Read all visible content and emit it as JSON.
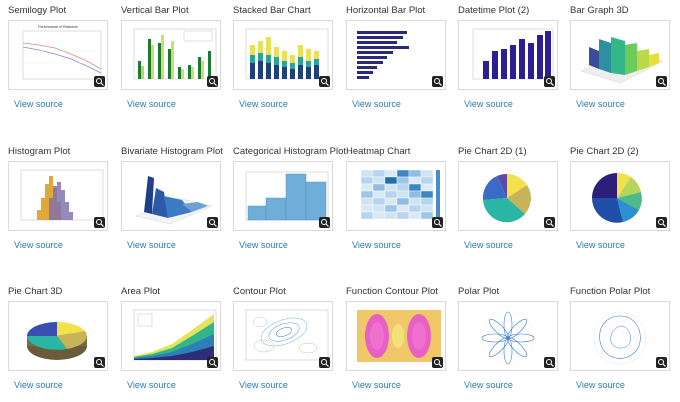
{
  "cards": [
    {
      "title": "Semilogy Plot",
      "link": "View source"
    },
    {
      "title": "Vertical Bar Plot",
      "link": "View source"
    },
    {
      "title": "Stacked Bar Chart",
      "link": "View source"
    },
    {
      "title": "Horizontal Bar Plot",
      "link": "View source"
    },
    {
      "title": "Datetime Plot (2)",
      "link": "View source"
    },
    {
      "title": "Bar Graph 3D",
      "link": "View source"
    },
    {
      "title": "Histogram Plot",
      "link": "View source"
    },
    {
      "title": "Bivariate Histogram Plot",
      "link": "View source"
    },
    {
      "title": "Categorical Histogram Plot",
      "link": "View source"
    },
    {
      "title": "Heatmap Chart",
      "link": "View source"
    },
    {
      "title": "Pie Chart 2D (1)",
      "link": "View source"
    },
    {
      "title": "Pie Chart 2D (2)",
      "link": "View source"
    },
    {
      "title": "Pie Chart 3D",
      "link": "View source"
    },
    {
      "title": "Area Plot",
      "link": "View source"
    },
    {
      "title": "Contour Plot",
      "link": "View source"
    },
    {
      "title": "Function Contour Plot",
      "link": "View source"
    },
    {
      "title": "Polar Plot",
      "link": "View source"
    },
    {
      "title": "Function Polar Plot",
      "link": "View source"
    }
  ],
  "colors": {
    "link": "#2a7ab5",
    "title": "#333333",
    "thumb_border": "#d9d9d9"
  },
  "icons": {
    "zoom": "zoom-icon"
  }
}
